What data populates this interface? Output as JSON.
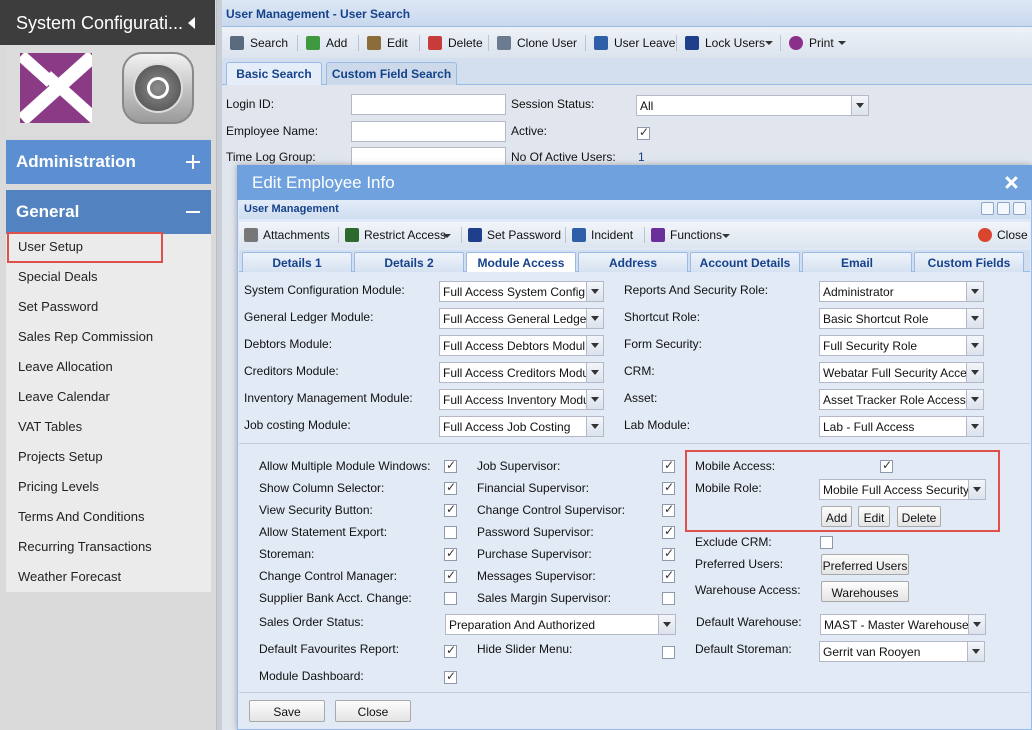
{
  "sidebar": {
    "title": "System Configurati...",
    "sections": [
      "Administration",
      "General"
    ],
    "items": [
      "User Setup",
      "Special Deals",
      "Set Password",
      "Sales Rep Commission",
      "Leave Allocation",
      "Leave Calendar",
      "VAT Tables",
      "Projects Setup",
      "Pricing Levels",
      "Terms And Conditions",
      "Recurring Transactions",
      "Weather Forecast"
    ]
  },
  "search": {
    "title": "User Management - User Search",
    "toolbar": [
      "Search",
      "Add",
      "Edit",
      "Delete",
      "Clone User",
      "User Leave",
      "Lock Users",
      "Print"
    ],
    "tabs": [
      "Basic Search",
      "Custom Field Search"
    ],
    "login_id": {
      "label": "Login ID:"
    },
    "employee_name": {
      "label": "Employee Name:"
    },
    "time_log_group": {
      "label": "Time Log Group:"
    },
    "session_status": {
      "label": "Session Status:",
      "value": "All"
    },
    "active": {
      "label": "Active:",
      "checked": true
    },
    "active_users": {
      "label": "No Of Active Users:",
      "value": "1"
    }
  },
  "dialog": {
    "title": "Edit Employee Info",
    "panel_title": "User Management",
    "toolbar": [
      "Attachments",
      "Restrict Access",
      "Set Password",
      "Incident",
      "Functions",
      "Close"
    ],
    "tabs": [
      "Details 1",
      "Details 2",
      "Module Access",
      "Address",
      "Account Details",
      "Email",
      "Custom Fields"
    ],
    "modules": [
      {
        "label": "System Configuration Module:",
        "value": "Full Access System Config"
      },
      {
        "label": "General Ledger Module:",
        "value": "Full Access General Ledger"
      },
      {
        "label": "Debtors Module:",
        "value": "Full Access Debtors Modul"
      },
      {
        "label": "Creditors Module:",
        "value": "Full Access Creditors Modu"
      },
      {
        "label": "Inventory Management Module:",
        "value": "Full Access Inventory Modu"
      },
      {
        "label": "Job costing Module:",
        "value": "Full Access Job Costing"
      }
    ],
    "roles": [
      {
        "label": "Reports And Security Role:",
        "value": "Administrator"
      },
      {
        "label": "Shortcut Role:",
        "value": "Basic Shortcut Role"
      },
      {
        "label": "Form Security:",
        "value": "Full Security Role"
      },
      {
        "label": "CRM:",
        "value": "Webatar Full Security Acce"
      },
      {
        "label": "Asset:",
        "value": "Asset Tracker Role Access"
      },
      {
        "label": "Lab Module:",
        "value": "Lab - Full Access"
      }
    ],
    "options_left": [
      {
        "label": "Allow Multiple Module Windows:",
        "checked": true
      },
      {
        "label": "Show Column Selector:",
        "checked": true
      },
      {
        "label": "View Security Button:",
        "checked": true
      },
      {
        "label": "Allow Statement Export:",
        "checked": false
      },
      {
        "label": "Storeman:",
        "checked": true
      },
      {
        "label": "Change Control Manager:",
        "checked": true
      },
      {
        "label": "Supplier Bank Acct. Change:",
        "checked": false
      }
    ],
    "options_mid": [
      {
        "label": "Job Supervisor:",
        "checked": true
      },
      {
        "label": "Financial Supervisor:",
        "checked": true
      },
      {
        "label": "Change Control Supervisor:",
        "checked": true
      },
      {
        "label": "Password Supervisor:",
        "checked": true
      },
      {
        "label": "Purchase Supervisor:",
        "checked": true
      },
      {
        "label": "Messages Supervisor:",
        "checked": true
      },
      {
        "label": "Sales Margin Supervisor:",
        "checked": false
      }
    ],
    "mobile_access": {
      "label": "Mobile Access:",
      "checked": true
    },
    "mobile_role": {
      "label": "Mobile Role:",
      "value": "Mobile Full Access Security"
    },
    "mobile_buttons": [
      "Add",
      "Edit",
      "Delete"
    ],
    "exclude_crm": {
      "label": "Exclude CRM:",
      "checked": false
    },
    "preferred_users": {
      "label": "Preferred Users:",
      "button": "Preferred Users"
    },
    "warehouse_access": {
      "label": "Warehouse Access:",
      "button": "Warehouses"
    },
    "sales_order_status": {
      "label": "Sales Order Status:",
      "value": "Preparation And Authorized"
    },
    "default_warehouse": {
      "label": "Default Warehouse:",
      "value": "MAST - Master Warehouse"
    },
    "default_favourites_report": {
      "label": "Default Favourites Report:",
      "checked": true
    },
    "hide_slider_menu": {
      "label": "Hide Slider Menu:",
      "checked": false
    },
    "default_storeman": {
      "label": "Default Storeman:",
      "value": "Gerrit van Rooyen"
    },
    "module_dashboard": {
      "label": "Module Dashboard:",
      "checked": true
    },
    "buttons": [
      "Save",
      "Close"
    ]
  }
}
